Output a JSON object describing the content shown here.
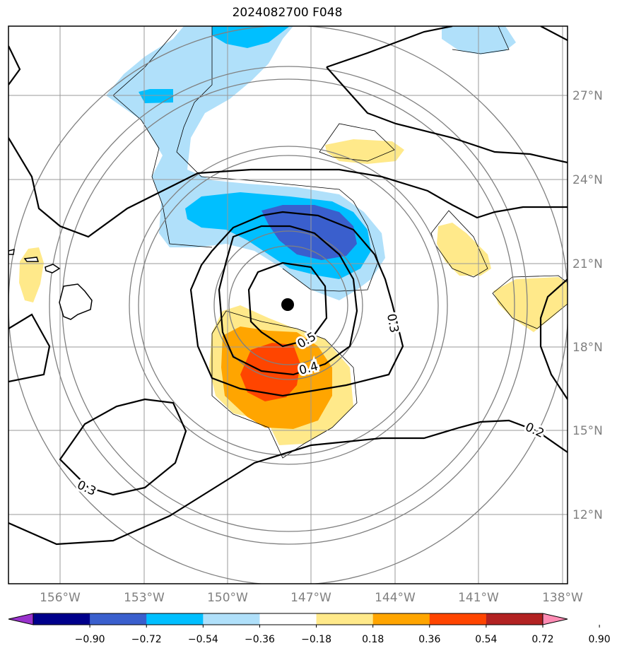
{
  "title": "2024082700 F048",
  "map": {
    "lon_labels": [
      "156°W",
      "153°W",
      "150°W",
      "147°W",
      "144°W",
      "141°W",
      "138°W"
    ],
    "lat_labels": [
      "27°N",
      "24°N",
      "21°N",
      "18°N",
      "15°N",
      "12°N"
    ],
    "storm_center": {
      "lon": -147.9,
      "lat": 19.5
    },
    "contour_labels": [
      "0.5",
      "0.4",
      "0.3",
      "0.3",
      "0.2"
    ]
  },
  "colorbar": {
    "ticks": [
      "−0.90",
      "−0.72",
      "−0.54",
      "−0.36",
      "−0.18",
      "0.18",
      "0.36",
      "0.54",
      "0.72",
      "0.90"
    ],
    "colors": [
      "#9932cc",
      "#00008b",
      "#3a5fcd",
      "#00bfff",
      "#b0e0fa",
      "#ffffff",
      "#ffe98a",
      "#ffa500",
      "#ff4500",
      "#b22222",
      "#ff8cb4"
    ]
  },
  "colors": {
    "grid": "#999999",
    "rings": "#808080",
    "contour": "#000000"
  }
}
